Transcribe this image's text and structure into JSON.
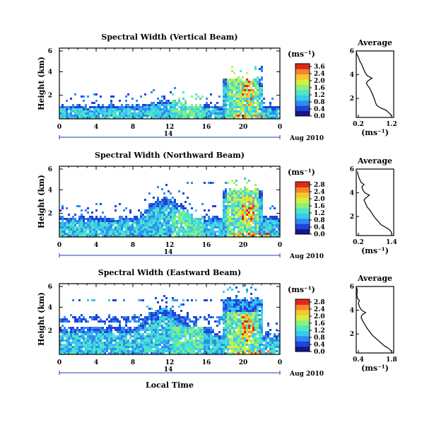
{
  "figure": {
    "panels": [
      {
        "title": "Spectral Width (Vertical Beam)",
        "cbar_unit": "(ms⁻¹)",
        "cbar_ticks": [
          "3.6",
          "2.4",
          "2.0",
          "1.6",
          "1.2",
          "0.8",
          "0.4",
          "0.0"
        ],
        "date_label": "Aug 2010",
        "day_label": "14",
        "profile_title": "Average",
        "profile_xticks": [
          "0.2",
          "1.2"
        ],
        "profile_xlabel": "(ms⁻¹)"
      },
      {
        "title": "Spectral Width (Northward Beam)",
        "cbar_unit": "(ms⁻¹)",
        "cbar_ticks": [
          "2.8",
          "2.4",
          "2.0",
          "1.6",
          "1.2",
          "0.8",
          "0.4",
          "0.0"
        ],
        "date_label": "Aug 2010",
        "day_label": "14",
        "profile_title": "Average",
        "profile_xticks": [
          "0.2",
          "1.4"
        ],
        "profile_xlabel": "(ms⁻¹)"
      },
      {
        "title": "Spectral Width (Eastward Beam)",
        "cbar_unit": "(ms⁻¹)",
        "cbar_ticks": [
          "2.8",
          "2.4",
          "2.0",
          "1.6",
          "1.2",
          "0.8",
          "0.4",
          "0.0"
        ],
        "date_label": "Aug 2010",
        "day_label": "14",
        "profile_title": "Average",
        "profile_xticks": [
          "0.4",
          "1.8"
        ],
        "profile_xlabel": "(ms⁻¹)"
      }
    ],
    "time_ticks": [
      "0",
      "4",
      "8",
      "12",
      "16",
      "20",
      "0"
    ],
    "height_ticks": [
      "2",
      "4",
      "6"
    ],
    "ylabel": "Height (km)",
    "xlabel": "Local Time",
    "colors": [
      "#16168a",
      "#1e44d8",
      "#2f8cf0",
      "#38c8f0",
      "#4ee6c4",
      "#8cf07a",
      "#d6ee44",
      "#f6c832",
      "#f6862a",
      "#e0281a"
    ]
  },
  "chart_data": [
    {
      "type": "heatmap",
      "title": "Spectral Width (Vertical Beam)",
      "xlabel": "",
      "ylabel": "Height (km)",
      "xlim": [
        0,
        24
      ],
      "ylim": [
        0,
        6
      ],
      "colorbar": {
        "label": "(ms⁻¹)",
        "range": [
          0.0,
          3.6
        ]
      },
      "grid": false,
      "profile": {
        "title": "Average",
        "xlabel": "(ms⁻¹)",
        "xlim": [
          0.2,
          1.2
        ],
        "ylim": [
          0.4,
          6
        ],
        "points": [
          [
            1.15,
            0.5
          ],
          [
            1.1,
            0.7
          ],
          [
            1.0,
            1.0
          ],
          [
            0.85,
            1.2
          ],
          [
            0.75,
            1.4
          ],
          [
            0.72,
            1.6
          ],
          [
            0.7,
            1.8
          ],
          [
            0.68,
            2.0
          ],
          [
            0.64,
            2.3
          ],
          [
            0.6,
            2.6
          ],
          [
            0.55,
            2.9
          ],
          [
            0.5,
            3.1
          ],
          [
            0.47,
            3.3
          ],
          [
            0.52,
            3.5
          ],
          [
            0.62,
            3.7
          ],
          [
            0.5,
            3.9
          ],
          [
            0.45,
            4.1
          ],
          [
            0.42,
            4.3
          ],
          [
            0.38,
            4.6
          ],
          [
            0.34,
            4.9
          ],
          [
            0.3,
            5.1
          ],
          [
            0.28,
            5.3
          ],
          [
            0.25,
            5.5
          ],
          [
            0.22,
            5.7
          ],
          [
            0.2,
            5.9
          ]
        ]
      }
    },
    {
      "type": "heatmap",
      "title": "Spectral Width (Northward Beam)",
      "xlabel": "",
      "ylabel": "Height (km)",
      "xlim": [
        0,
        24
      ],
      "ylim": [
        0,
        6
      ],
      "colorbar": {
        "label": "(ms⁻¹)",
        "range": [
          0.0,
          2.8
        ]
      },
      "grid": false,
      "profile": {
        "title": "Average",
        "xlabel": "(ms⁻¹)",
        "xlim": [
          0.2,
          1.4
        ],
        "ylim": [
          0.4,
          6
        ],
        "points": [
          [
            1.35,
            0.5
          ],
          [
            1.3,
            0.8
          ],
          [
            1.2,
            1.0
          ],
          [
            1.0,
            1.3
          ],
          [
            0.9,
            1.6
          ],
          [
            0.8,
            1.9
          ],
          [
            0.72,
            2.2
          ],
          [
            0.65,
            2.5
          ],
          [
            0.55,
            2.8
          ],
          [
            0.5,
            3.1
          ],
          [
            0.45,
            3.4
          ],
          [
            0.52,
            3.6
          ],
          [
            0.62,
            3.8
          ],
          [
            0.48,
            4.0
          ],
          [
            0.42,
            4.2
          ],
          [
            0.38,
            4.5
          ],
          [
            0.45,
            4.7
          ],
          [
            0.35,
            4.9
          ],
          [
            0.3,
            5.2
          ],
          [
            0.26,
            5.5
          ],
          [
            0.24,
            5.8
          ]
        ]
      }
    },
    {
      "type": "heatmap",
      "title": "Spectral Width (Eastward Beam)",
      "xlabel": "Local Time",
      "ylabel": "Height (km)",
      "xlim": [
        0,
        24
      ],
      "ylim": [
        0,
        6
      ],
      "colorbar": {
        "label": "(ms⁻¹)",
        "range": [
          0.0,
          2.8
        ]
      },
      "grid": false,
      "profile": {
        "title": "Average",
        "xlabel": "(ms⁻¹)",
        "xlim": [
          0.4,
          1.8
        ],
        "ylim": [
          0.4,
          6
        ],
        "points": [
          [
            1.75,
            0.5
          ],
          [
            1.6,
            0.8
          ],
          [
            1.45,
            1.0
          ],
          [
            1.3,
            1.3
          ],
          [
            1.15,
            1.6
          ],
          [
            1.0,
            1.9
          ],
          [
            0.9,
            2.2
          ],
          [
            0.8,
            2.5
          ],
          [
            0.72,
            2.8
          ],
          [
            0.64,
            3.1
          ],
          [
            0.58,
            3.4
          ],
          [
            0.62,
            3.6
          ],
          [
            0.75,
            3.8
          ],
          [
            0.6,
            4.0
          ],
          [
            0.52,
            4.3
          ],
          [
            0.48,
            4.6
          ],
          [
            0.52,
            4.8
          ],
          [
            0.45,
            5.0
          ],
          [
            0.42,
            5.3
          ],
          [
            0.44,
            5.6
          ],
          [
            0.42,
            5.9
          ]
        ]
      }
    }
  ]
}
